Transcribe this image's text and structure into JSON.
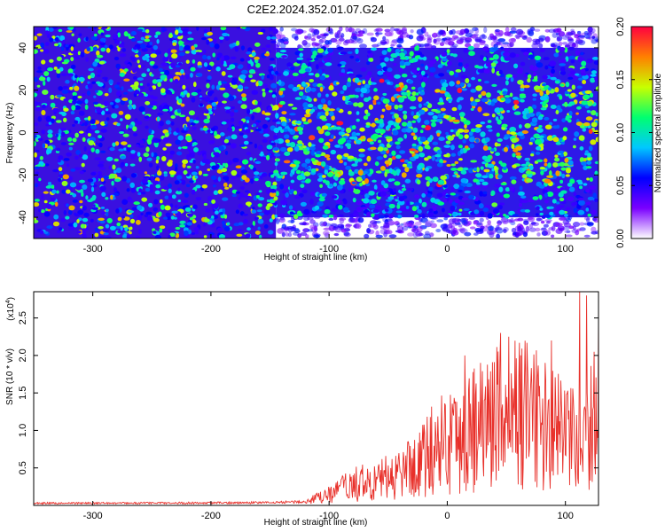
{
  "title": "C2E2.2024.352.01.07.G24",
  "spectrogram": {
    "type": "heatmap",
    "xlabel": "Height of straight line (km)",
    "ylabel": "Frequency (Hz)",
    "xlim": [
      -350,
      128
    ],
    "ylim": [
      -50,
      50
    ],
    "x_ticks": [
      "-300",
      "-200",
      "-100",
      "0",
      "100"
    ],
    "x_tick_values": [
      -300,
      -200,
      -100,
      0,
      100
    ],
    "y_ticks": [
      "40",
      "20",
      "0",
      "-20",
      "-40"
    ],
    "y_tick_values": [
      40,
      20,
      0,
      -20,
      -40
    ],
    "colorbar": {
      "label": "Normalized spectral amplitude",
      "range": [
        0.0,
        0.2
      ],
      "ticks": [
        "0.20",
        "0.15",
        "0.10",
        "0.05",
        "0.00"
      ],
      "tick_values": [
        0.2,
        0.15,
        0.1,
        0.05,
        0.0
      ],
      "colormap": [
        "#ffffff",
        "#7a00ff",
        "#0000ff",
        "#00c8ff",
        "#00ff70",
        "#c8ff00",
        "#ff8000",
        "#ff0040"
      ]
    },
    "description_data": {
      "full_band_region_x": [
        -350,
        -145
      ],
      "narrowed_band_region_x": [
        -145,
        128
      ],
      "narrowed_band_halfwidth_hz": 40,
      "enhanced_core_x": [
        -140,
        128
      ],
      "enhanced_core_halfwidth_hz": 25
    }
  },
  "snr_panel": {
    "type": "line",
    "xlabel": "Height of straight line (km)",
    "ylabel": "SNR (10 * v/v)",
    "y_multiplier": "(x10",
    "y_multiplier_exp": "4",
    "y_multiplier_close": ")",
    "xlim": [
      -350,
      128
    ],
    "ylim": [
      0,
      28500
    ],
    "x_ticks": [
      "-300",
      "-200",
      "-100",
      "0",
      "100"
    ],
    "x_tick_values": [
      -300,
      -200,
      -100,
      0,
      100
    ],
    "y_ticks": [
      "2.5",
      "2.0",
      "1.5",
      "1.0",
      "0.5"
    ],
    "y_tick_values": [
      25000,
      20000,
      15000,
      10000,
      5000
    ],
    "color": "#e8302a",
    "series": [
      {
        "x": [
          -350,
          -300,
          -250,
          -200,
          -150,
          -120,
          -100,
          -80,
          -60,
          -40,
          -20,
          0,
          20,
          40,
          60,
          80,
          100,
          115,
          128
        ],
        "y": [
          300,
          300,
          320,
          330,
          380,
          500,
          1500,
          3000,
          3500,
          4500,
          7000,
          9500,
          11000,
          13000,
          13500,
          12000,
          10000,
          8000,
          15000
        ]
      }
    ],
    "peaks": [
      {
        "x": 15,
        "y": 20000
      },
      {
        "x": 45,
        "y": 23000
      },
      {
        "x": 52,
        "y": 22500
      },
      {
        "x": 88,
        "y": 22000
      },
      {
        "x": 112,
        "y": 28500
      },
      {
        "x": 118,
        "y": 28000
      },
      {
        "x": 128,
        "y": 25000
      }
    ]
  }
}
